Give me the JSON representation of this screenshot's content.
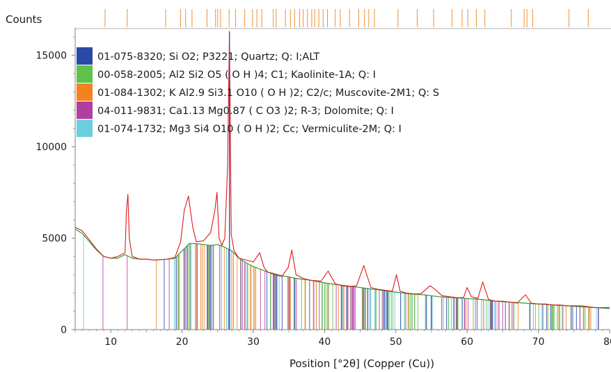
{
  "chart_data": {
    "type": "line",
    "title": "",
    "ylabel": "Counts",
    "xlabel": "Position [°2θ] (Copper (Cu))",
    "xlim": [
      5,
      80
    ],
    "ylim": [
      0,
      16500
    ],
    "x_ticks": [
      10,
      20,
      30,
      40,
      50,
      60,
      70,
      80
    ],
    "x_tick_labels": [
      "10",
      "20",
      "30",
      "40",
      "50",
      "60",
      "70",
      "80"
    ],
    "y_ticks": [
      0,
      5000,
      10000,
      15000
    ],
    "y_tick_labels": [
      "0",
      "5000",
      "10000",
      "15000"
    ],
    "grid": false,
    "legend_position": "top-left",
    "colors": {
      "observed": "#e01818",
      "calculated": "#2e9a3a",
      "top_ticks": "#f09030",
      "frame": "#7f7f7f"
    },
    "legend": [
      {
        "label": "01-075-8320; Si O2; P3221; Quartz; Q: I;ALT",
        "color": "#2b4aa5"
      },
      {
        "label": "00-058-2005; Al2 Si2 O5 ( O H )4; C1; Kaolinite-1A; Q: I",
        "color": "#5ec24a"
      },
      {
        "label": "01-084-1302; K Al2.9 Si3.1 O10 ( O H )2; C2/c; Muscovite-2M1; Q: S",
        "color": "#f58220"
      },
      {
        "label": "04-011-9831; Ca1.13 Mg0.87 ( C O3 )2; R-3; Dolomite; Q: I",
        "color": "#b040a0"
      },
      {
        "label": "01-074-1732; Mg3 Si4 O10 ( O H )2; Cc; Vermiculite-2M; Q: I",
        "color": "#6ccfe0"
      }
    ],
    "series": [
      {
        "name": "",
        "color": "#e01818",
        "x": [
          5,
          6,
          7,
          8,
          9,
          10,
          11,
          12,
          12.2,
          12.4,
          12.6,
          13,
          14,
          15,
          16,
          17,
          18,
          19,
          19.8,
          20.3,
          20.9,
          21.5,
          22,
          23,
          24,
          24.6,
          24.9,
          25.2,
          25.6,
          26,
          26.4,
          26.65,
          26.9,
          27.3,
          28,
          29,
          30,
          30.9,
          31.5,
          32,
          33,
          34,
          34.9,
          35.4,
          36,
          37,
          38,
          39.5,
          40.5,
          41.5,
          42.5,
          43.5,
          44.5,
          45.5,
          46.5,
          47.5,
          48.5,
          49.5,
          50.1,
          50.6,
          51.5,
          52.5,
          53.5,
          54.8,
          55.5,
          56.5,
          57.5,
          58.5,
          59.5,
          60,
          60.6,
          61.5,
          62.2,
          63,
          64,
          65,
          66,
          67,
          68.2,
          69,
          70,
          71,
          72,
          73,
          74,
          75,
          76,
          77,
          78,
          79,
          80
        ],
        "values": [
          5600,
          5400,
          4900,
          4400,
          4000,
          3900,
          4000,
          4200,
          6500,
          7400,
          5000,
          4000,
          3850,
          3850,
          3800,
          3820,
          3850,
          3950,
          4800,
          6500,
          7300,
          5600,
          4800,
          4850,
          5300,
          6500,
          7500,
          5000,
          4600,
          5000,
          9000,
          16300,
          5200,
          4300,
          3900,
          3800,
          3700,
          4200,
          3400,
          3150,
          3000,
          2900,
          3400,
          4350,
          3000,
          2800,
          2700,
          2650,
          3200,
          2500,
          2400,
          2350,
          2400,
          3500,
          2300,
          2200,
          2150,
          2100,
          3000,
          2100,
          2000,
          1950,
          1950,
          2400,
          2200,
          1850,
          1800,
          1750,
          1750,
          2300,
          1800,
          1700,
          2600,
          1650,
          1550,
          1550,
          1500,
          1450,
          1900,
          1450,
          1400,
          1400,
          1350,
          1350,
          1300,
          1300,
          1300,
          1250,
          1200,
          1200,
          1200
        ]
      },
      {
        "name": "",
        "color": "#2e9a3a",
        "x": [
          5,
          6,
          7,
          8,
          9,
          10,
          11,
          12,
          13,
          14,
          15,
          16,
          17,
          18,
          19,
          20,
          21,
          22,
          23,
          24,
          25,
          26,
          27,
          28,
          29,
          30,
          32,
          34,
          36,
          38,
          40,
          42,
          44,
          46,
          48,
          50,
          52,
          54,
          56,
          58,
          60,
          62,
          64,
          66,
          68,
          70,
          72,
          74,
          76,
          78,
          80
        ],
        "values": [
          5500,
          5250,
          4800,
          4350,
          4000,
          3900,
          3900,
          4100,
          3900,
          3850,
          3850,
          3800,
          3820,
          3850,
          3900,
          4300,
          4700,
          4700,
          4650,
          4600,
          4650,
          4500,
          4300,
          3900,
          3650,
          3450,
          3150,
          2950,
          2800,
          2700,
          2550,
          2450,
          2350,
          2250,
          2150,
          2050,
          1950,
          1900,
          1800,
          1750,
          1700,
          1650,
          1550,
          1500,
          1450,
          1400,
          1350,
          1300,
          1250,
          1200,
          1150
        ]
      }
    ]
  }
}
